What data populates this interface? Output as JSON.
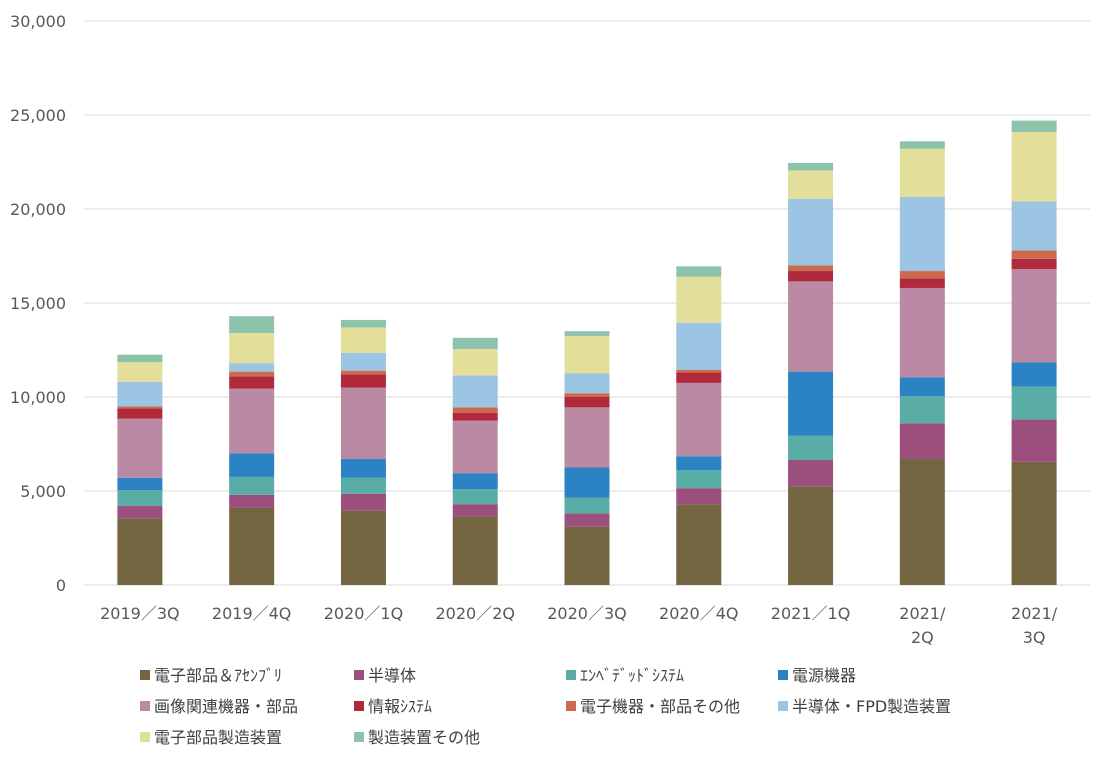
{
  "chart_data": {
    "type": "bar",
    "stacked": true,
    "title": "",
    "xlabel": "",
    "ylabel": "",
    "ylim": [
      0,
      30000
    ],
    "yticks": [
      0,
      5000,
      10000,
      15000,
      20000,
      25000,
      30000
    ],
    "ytick_labels": [
      "0",
      "5,000",
      "10,000",
      "15,000",
      "20,000",
      "25,000",
      "30,000"
    ],
    "grid": true,
    "legend_position": "bottom",
    "categories": [
      "2019／3Q",
      "2019／4Q",
      "2020／1Q",
      "2020／2Q",
      "2020／3Q",
      "2020／4Q",
      "2021／1Q",
      "2021／2Q",
      "2021／3Q"
    ],
    "category_lines": [
      [
        "2019／3Q"
      ],
      [
        "2019／4Q"
      ],
      [
        "2020／1Q"
      ],
      [
        "2020／2Q"
      ],
      [
        "2020／3Q"
      ],
      [
        "2020／4Q"
      ],
      [
        "2021／1Q"
      ],
      [
        "2021/",
        "2Q"
      ],
      [
        "2021/",
        "3Q"
      ]
    ],
    "series": [
      {
        "name": "電子部品＆ｱｾﾝﾌﾞﾘ",
        "color": "#73653f",
        "values": [
          3550,
          4100,
          3950,
          3650,
          3100,
          4300,
          5250,
          6700,
          6550
        ]
      },
      {
        "name": "半導体",
        "color": "#9c4f7f",
        "values": [
          650,
          700,
          900,
          650,
          700,
          850,
          1400,
          1900,
          2250
        ]
      },
      {
        "name": "ｴﾝﾍﾞﾃﾞｯﾄﾞｼｽﾃﾑ",
        "color": "#5aaca7",
        "values": [
          850,
          950,
          850,
          800,
          850,
          950,
          1300,
          1450,
          1750
        ]
      },
      {
        "name": "電源機器",
        "color": "#2c83c4",
        "values": [
          650,
          1250,
          1000,
          850,
          1600,
          750,
          3400,
          1000,
          1300
        ]
      },
      {
        "name": "画像関連機器・部品",
        "color": "#ba8aa4",
        "values": [
          3150,
          3450,
          3800,
          2800,
          3200,
          3900,
          4800,
          4750,
          4950
        ]
      },
      {
        "name": "情報ｼｽﾃﾑ",
        "color": "#b02a3c",
        "values": [
          550,
          650,
          700,
          400,
          550,
          550,
          550,
          500,
          550
        ]
      },
      {
        "name": "電子機器・部品その他",
        "color": "#cc6a4e",
        "values": [
          100,
          250,
          200,
          300,
          200,
          150,
          300,
          400,
          450
        ]
      },
      {
        "name": "半導体・FPD製造装置",
        "color": "#9bc5e3",
        "values": [
          1300,
          450,
          950,
          1700,
          1050,
          2500,
          3550,
          3950,
          2600
        ]
      },
      {
        "name": "電子部品製造装置",
        "color": "#e3df9a",
        "values": [
          1050,
          1600,
          1350,
          1400,
          2000,
          2450,
          1500,
          2550,
          3700
        ]
      },
      {
        "name": "製造装置その他",
        "color": "#8cc3aa",
        "values": [
          400,
          900,
          400,
          600,
          250,
          550,
          400,
          400,
          600
        ]
      }
    ]
  }
}
